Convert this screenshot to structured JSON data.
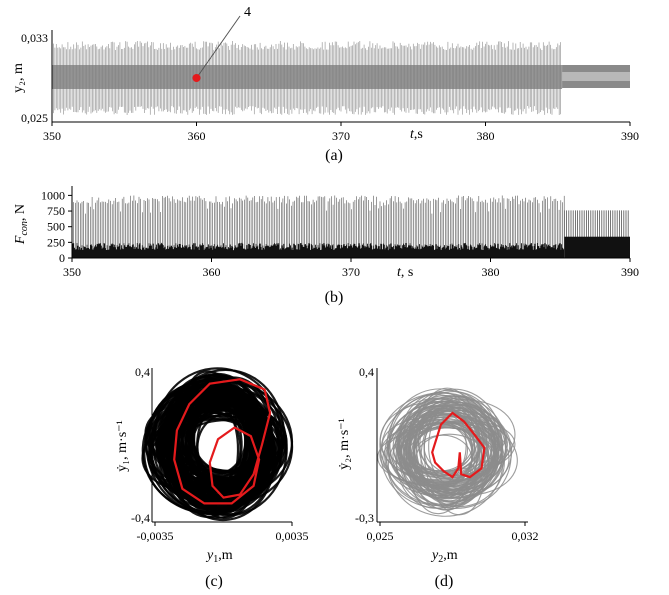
{
  "chart_data": [
    {
      "type": "line",
      "panel": "(a)",
      "xlabel": "t,s",
      "ylabel": "y2, m",
      "xlim": [
        350,
        390
      ],
      "ylim": [
        0.025,
        0.033
      ],
      "xticks": [
        "350",
        "360",
        "370",
        "380",
        "390"
      ],
      "yticks": [
        "0,025",
        "0,033"
      ],
      "annotation": {
        "label": "4",
        "point": {
          "x": 360,
          "y": 0.029
        },
        "color": "#e41a1c"
      },
      "series": [
        {
          "segment": "chaotic",
          "t_range": [
            350,
            385.3
          ],
          "y_min": 0.0253,
          "y_max": 0.0327,
          "dense_band": [
            0.0279,
            0.0303
          ]
        },
        {
          "segment": "periodic",
          "t_range": [
            385.3,
            390
          ],
          "y_min": 0.028,
          "y_max": 0.0303
        }
      ]
    },
    {
      "type": "line",
      "panel": "(b)",
      "xlabel": "t, s",
      "ylabel": "Fcon, N",
      "xlim": [
        350,
        390
      ],
      "ylim": [
        0,
        1150
      ],
      "xticks": [
        "350",
        "360",
        "370",
        "380",
        "390"
      ],
      "yticks": [
        "0",
        "250",
        "500",
        "750",
        "1000"
      ],
      "series": [
        {
          "segment": "chaotic",
          "t_range": [
            350,
            385.3
          ],
          "peak_max": 1000,
          "lower_band": 230
        },
        {
          "segment": "periodic",
          "t_range": [
            385.3,
            390
          ],
          "peak": 760,
          "lower_band": 340
        }
      ]
    },
    {
      "type": "scatter",
      "panel": "(c)",
      "xlabel": "y1,m",
      "ylabel": "ẏ1, m·s⁻¹",
      "xlim": [
        -0.0035,
        0.0035
      ],
      "ylim": [
        -0.4,
        0.4
      ],
      "xticks": [
        "-0,0035",
        "0,0035"
      ],
      "yticks": [
        "0,4",
        "-0,4"
      ],
      "series": [
        {
          "name": "",
          "color": "#000000",
          "kind": "chaotic attractor"
        },
        {
          "name": "",
          "color": "#e41a1c",
          "kind": "periodic orbit"
        }
      ]
    },
    {
      "type": "scatter",
      "panel": "(d)",
      "xlabel": "y2,m",
      "ylabel": "ẏ2, m·s⁻¹",
      "xlim": [
        0.025,
        0.032
      ],
      "ylim": [
        -0.3,
        0.4
      ],
      "xticks": [
        "0,025",
        "0,032"
      ],
      "yticks": [
        "0,4",
        "-0,3"
      ],
      "series": [
        {
          "name": "",
          "color": "#8c8c8c",
          "kind": "chaotic attractor"
        },
        {
          "name": "",
          "color": "#e41a1c",
          "kind": "periodic orbit"
        }
      ]
    }
  ],
  "captions": {
    "a": "(a)",
    "b": "(b)",
    "c": "(c)",
    "d": "(d)"
  },
  "labels": {
    "a_ylabel": "y₂, m",
    "a_xlabel_t": "t",
    "a_xlabel_rest": ",s",
    "b_ylabel_F": "F",
    "b_ylabel_sub": "con",
    "b_ylabel_rest": ", N",
    "b_xlabel_t": "t",
    "b_xlabel_rest": ", s",
    "c_xlabel": "y",
    "c_xlabel_sub": "1",
    "c_xlabel_rest": ",m",
    "c_ylabel": "ẏ₁, m·s⁻¹",
    "d_xlabel": "y",
    "d_xlabel_sub": "2",
    "d_xlabel_rest": ",m",
    "d_ylabel": "ẏ₂, m·s⁻¹",
    "annotation": "4"
  }
}
